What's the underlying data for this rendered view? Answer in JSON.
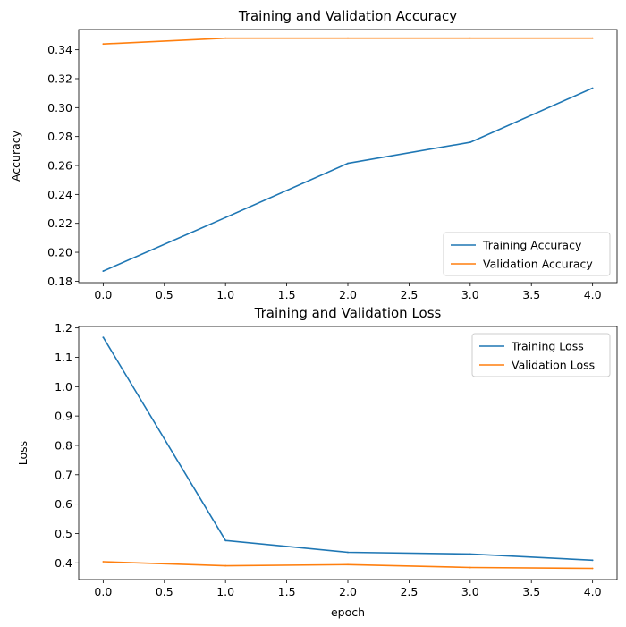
{
  "chart_data": [
    {
      "type": "line",
      "title": "Training and Validation Accuracy",
      "xlabel": "",
      "ylabel": "Accuracy",
      "x": [
        0,
        1,
        2,
        3,
        4
      ],
      "xlim": [
        -0.2,
        4.2
      ],
      "ylim": [
        0.179,
        0.354
      ],
      "xticks": [
        "0.0",
        "0.5",
        "1.0",
        "1.5",
        "2.0",
        "2.5",
        "3.0",
        "3.5",
        "4.0"
      ],
      "yticks": [
        "0.18",
        "0.20",
        "0.22",
        "0.24",
        "0.26",
        "0.28",
        "0.30",
        "0.32",
        "0.34"
      ],
      "legend": "lower-right",
      "series": [
        {
          "name": "Training Accuracy",
          "color": "#1f77b4",
          "values": [
            0.187,
            0.224,
            0.2615,
            0.276,
            0.3135
          ]
        },
        {
          "name": "Validation Accuracy",
          "color": "#ff7f0e",
          "values": [
            0.344,
            0.348,
            0.348,
            0.348,
            0.348
          ]
        }
      ]
    },
    {
      "type": "line",
      "title": "Training and Validation Loss",
      "xlabel": "epoch",
      "ylabel": "Loss",
      "x": [
        0,
        1,
        2,
        3,
        4
      ],
      "xlim": [
        -0.2,
        4.2
      ],
      "ylim": [
        0.343,
        1.205
      ],
      "xticks": [
        "0.0",
        "0.5",
        "1.0",
        "1.5",
        "2.0",
        "2.5",
        "3.0",
        "3.5",
        "4.0"
      ],
      "yticks": [
        "0.4",
        "0.5",
        "0.6",
        "0.7",
        "0.8",
        "0.9",
        "1.0",
        "1.1",
        "1.2"
      ],
      "legend": "upper-right",
      "series": [
        {
          "name": "Training Loss",
          "color": "#1f77b4",
          "values": [
            1.168,
            0.476,
            0.436,
            0.43,
            0.409
          ]
        },
        {
          "name": "Validation Loss",
          "color": "#ff7f0e",
          "values": [
            0.404,
            0.39,
            0.394,
            0.384,
            0.381
          ]
        }
      ]
    }
  ]
}
